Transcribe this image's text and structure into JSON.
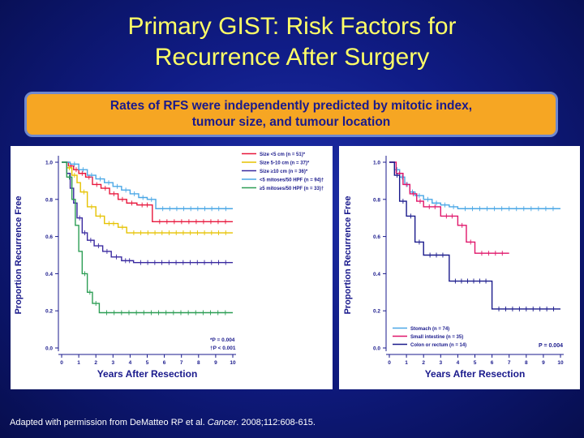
{
  "slide": {
    "title_line1": "Primary GIST: Risk Factors for",
    "title_line2": "Recurrence After Surgery",
    "callout_line1": "Rates of RFS were independently predicted by mitotic index,",
    "callout_line2": "tumour size, and tumour location",
    "citation_pre": "Adapted with permission from DeMatteo RP et al. ",
    "citation_journal": "Cancer",
    "citation_post": ". 2008;112:608-615."
  },
  "chart_data": [
    {
      "type": "line",
      "subtype": "kaplan-meier",
      "xlabel": "Years After Resection",
      "ylabel": "Proportion Recurrence Free",
      "xlim": [
        0,
        10
      ],
      "ylim": [
        0,
        1.0
      ],
      "xticks": [
        0,
        1,
        2,
        3,
        4,
        5,
        6,
        7,
        8,
        9,
        10
      ],
      "yticks": [
        "0.0",
        "0.2",
        "0.4",
        "0.6",
        "0.8",
        "1.0"
      ],
      "annotations": [
        "*P = 0.004",
        "†P < 0.001"
      ],
      "legend_position": "top-right",
      "series": [
        {
          "name": "Size <5 cm (n = 51)*",
          "color": "#e8173c",
          "x": [
            0,
            0.4,
            0.7,
            1.0,
            1.4,
            1.8,
            2.3,
            2.8,
            3.3,
            3.8,
            4.4,
            5.3,
            10
          ],
          "y": [
            1.0,
            0.98,
            0.96,
            0.94,
            0.92,
            0.88,
            0.86,
            0.83,
            0.8,
            0.78,
            0.77,
            0.68,
            0.68
          ]
        },
        {
          "name": "Size 5-10 cm (n = 37)*",
          "color": "#e6c200",
          "x": [
            0,
            0.3,
            0.6,
            0.9,
            1.1,
            1.5,
            2.0,
            2.5,
            3.3,
            3.8,
            10
          ],
          "y": [
            1.0,
            0.97,
            0.93,
            0.89,
            0.84,
            0.76,
            0.71,
            0.67,
            0.65,
            0.62,
            0.62
          ]
        },
        {
          "name": "Size ≥10 cm (n = 36)*",
          "color": "#3a2aa0",
          "x": [
            0,
            0.3,
            0.5,
            0.7,
            0.9,
            1.2,
            1.5,
            1.9,
            2.4,
            2.9,
            3.5,
            4.2,
            10
          ],
          "y": [
            1.0,
            0.94,
            0.86,
            0.78,
            0.7,
            0.62,
            0.58,
            0.55,
            0.52,
            0.49,
            0.47,
            0.46,
            0.46
          ]
        },
        {
          "name": "<5 mitoses/50 HPF (n = 94)†",
          "color": "#4aa7e6",
          "x": [
            0,
            0.5,
            1.0,
            1.5,
            2.0,
            2.5,
            3.0,
            3.5,
            4.0,
            4.5,
            5.0,
            5.5,
            10
          ],
          "y": [
            1.0,
            0.99,
            0.96,
            0.93,
            0.91,
            0.89,
            0.87,
            0.85,
            0.83,
            0.81,
            0.8,
            0.75,
            0.75
          ]
        },
        {
          "name": "≥5 mitoses/50 HPF (n = 33)†",
          "color": "#2d9e55",
          "x": [
            0,
            0.3,
            0.6,
            0.8,
            1.0,
            1.2,
            1.5,
            1.8,
            2.2,
            10
          ],
          "y": [
            1.0,
            0.92,
            0.8,
            0.66,
            0.52,
            0.4,
            0.3,
            0.24,
            0.19,
            0.19
          ]
        }
      ]
    },
    {
      "type": "line",
      "subtype": "kaplan-meier",
      "xlabel": "Years After Resection",
      "ylabel": "Proportion Recurrence Free",
      "xlim": [
        0,
        10
      ],
      "ylim": [
        0,
        1.0
      ],
      "xticks": [
        0,
        1,
        2,
        3,
        4,
        5,
        6,
        7,
        8,
        9,
        10
      ],
      "yticks": [
        "0.0",
        "0.2",
        "0.4",
        "0.6",
        "0.8",
        "1.0"
      ],
      "annotations": [
        "P = 0.004"
      ],
      "legend_position": "bottom-left",
      "series": [
        {
          "name": "Stomach (n = 74)",
          "color": "#4aa7e6",
          "x": [
            0,
            0.3,
            0.6,
            0.9,
            1.2,
            1.5,
            2.0,
            2.5,
            3.0,
            3.5,
            4.0,
            10
          ],
          "y": [
            1.0,
            0.96,
            0.92,
            0.88,
            0.84,
            0.82,
            0.8,
            0.78,
            0.77,
            0.76,
            0.75,
            0.75
          ]
        },
        {
          "name": "Small intestine (n = 35)",
          "color": "#e0156a",
          "x": [
            0,
            0.4,
            0.8,
            1.2,
            1.6,
            2.0,
            3.0,
            4.0,
            4.5,
            5.0,
            7.0
          ],
          "y": [
            1.0,
            0.94,
            0.88,
            0.83,
            0.79,
            0.76,
            0.71,
            0.66,
            0.57,
            0.51,
            0.51
          ]
        },
        {
          "name": "Colon or rectum (n = 14)",
          "color": "#1a1a8c",
          "x": [
            0,
            0.3,
            0.6,
            1.0,
            1.5,
            2.0,
            3.5,
            6.0,
            10
          ],
          "y": [
            1.0,
            0.93,
            0.79,
            0.71,
            0.57,
            0.5,
            0.36,
            0.21,
            0.21
          ]
        }
      ]
    }
  ]
}
